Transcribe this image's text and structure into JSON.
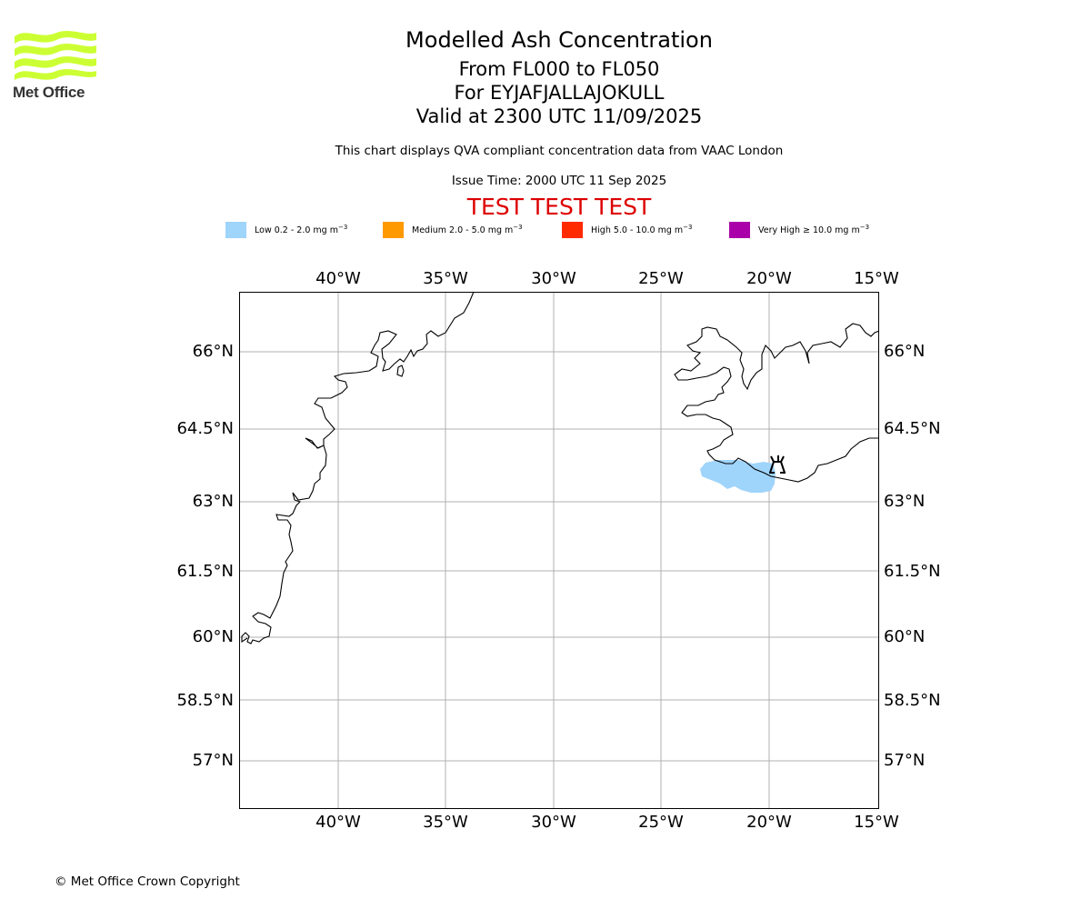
{
  "logo": {
    "name": "Met Office"
  },
  "title": {
    "line1": "Modelled Ash Concentration",
    "line2": "From FL000 to FL050",
    "line3": "For EYJAFJALLAJOKULL",
    "line4": "Valid at 2300 UTC 11/09/2025"
  },
  "subtitle": "This chart displays QVA compliant concentration data from VAAC London",
  "issue_time": "Issue Time: 2000 UTC 11 Sep 2025",
  "test_banner": "TEST TEST TEST",
  "legend": [
    {
      "label": "Low 0.2 - 2.0 mg m",
      "color": "#9fd4fb"
    },
    {
      "label": "Medium 2.0 - 5.0 mg m",
      "color": "#ff9900"
    },
    {
      "label": "High 5.0 - 10.0 mg m",
      "color": "#ff2a00"
    },
    {
      "label": "Very High ≥ 10.0 mg m",
      "color": "#aa00aa"
    }
  ],
  "legend_unit_exponent": "−3",
  "map": {
    "longitude_ticks": [
      "40°W",
      "35°W",
      "30°W",
      "25°W",
      "20°W",
      "15°W"
    ],
    "latitude_ticks": [
      "66°N",
      "64.5°N",
      "63°N",
      "61.5°N",
      "60°N",
      "58.5°N",
      "57°N"
    ],
    "volcano_icon": "volcano-icon",
    "ash_region_level": "Low"
  },
  "copyright": "© Met Office Crown Copyright"
}
